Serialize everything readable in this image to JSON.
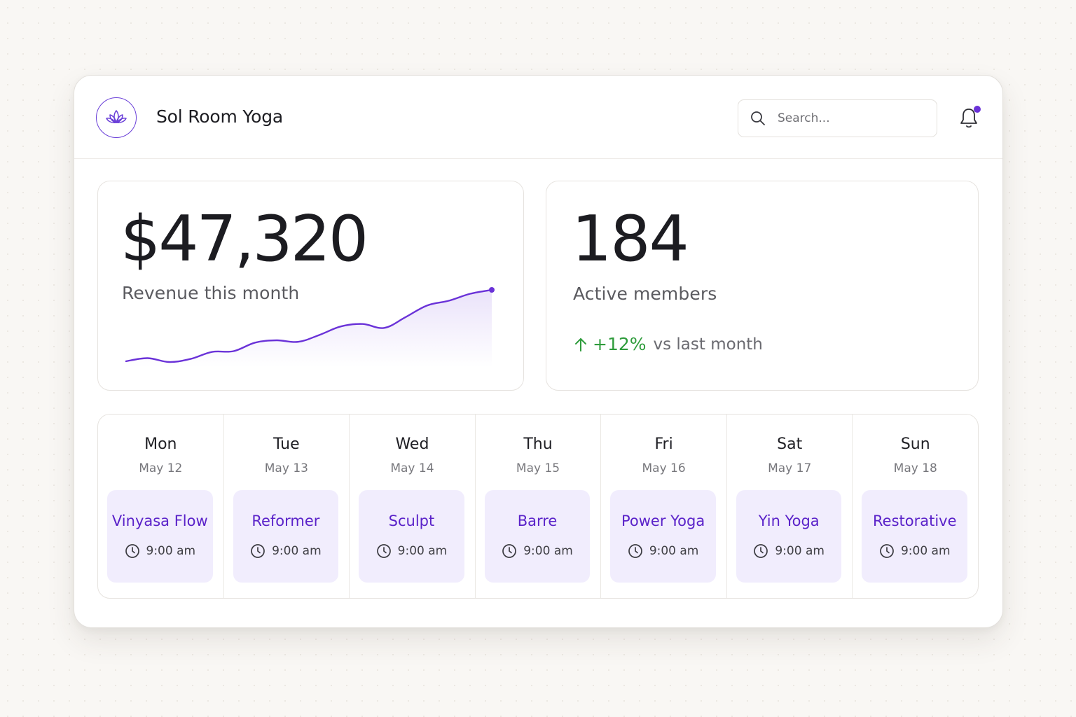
{
  "app": {
    "name": "Sol Room Yoga",
    "logo_icon": "lotus-icon"
  },
  "header": {
    "search": {
      "placeholder": "Search...",
      "icon": "search-icon"
    },
    "notifications": {
      "icon": "bell-icon",
      "has_unread": true
    }
  },
  "colors": {
    "accent": "#6a32d8",
    "class_card_bg": "#f1edfd",
    "class_text": "#5a22c9",
    "positive": "#2f9c3c"
  },
  "revenue": {
    "value": "$47,320",
    "label": "Revenue this month",
    "trend_series": [
      8,
      12,
      7,
      11,
      20,
      21,
      32,
      35,
      33,
      42,
      53,
      56,
      51,
      65,
      80,
      86,
      95,
      100
    ]
  },
  "members": {
    "value": "184",
    "label": "Active members",
    "change": "+12%",
    "change_suffix": "vs last month",
    "change_icon": "arrow-up-icon"
  },
  "schedule": {
    "days": [
      {
        "day": "Mon",
        "date": "May 12",
        "class": "Vinyasa Flow",
        "time": "9:00 am"
      },
      {
        "day": "Tue",
        "date": "May 13",
        "class": "Reformer",
        "time": "9:00 am"
      },
      {
        "day": "Wed",
        "date": "May 14",
        "class": "Sculpt",
        "time": "9:00 am"
      },
      {
        "day": "Thu",
        "date": "May 15",
        "class": "Barre",
        "time": "9:00 am"
      },
      {
        "day": "Fri",
        "date": "May 16",
        "class": "Power Yoga",
        "time": "9:00 am"
      },
      {
        "day": "Sat",
        "date": "May 17",
        "class": "Yin Yoga",
        "time": "9:00 am"
      },
      {
        "day": "Sun",
        "date": "May 18",
        "class": "Restorative",
        "time": "9:00 am"
      }
    ]
  }
}
